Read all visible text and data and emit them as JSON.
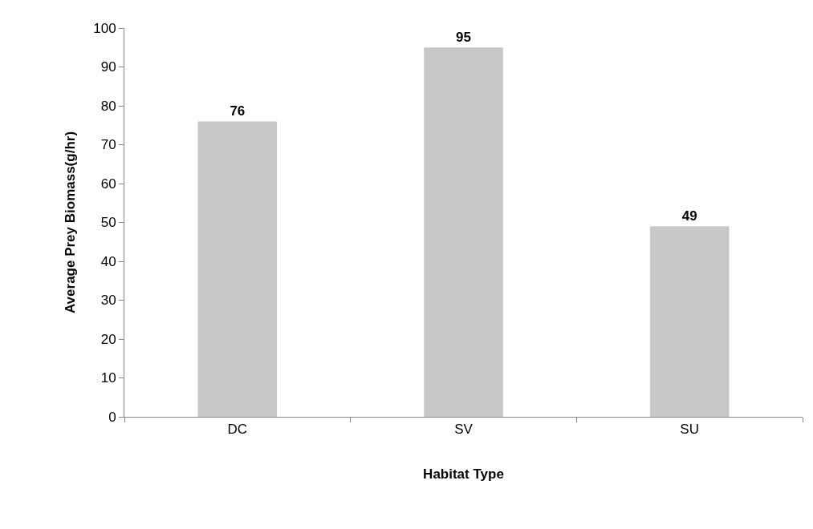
{
  "chart_data": {
    "type": "bar",
    "xlabel": "Habitat Type",
    "ylabel": "Average Prey Biomass(g/hr)",
    "categories": [
      "DC",
      "SV",
      "SU"
    ],
    "values": [
      76,
      95,
      49
    ],
    "color": "#c8c8c8",
    "ylim": [
      0,
      100
    ],
    "yticks": [
      0,
      10,
      20,
      30,
      40,
      50,
      60,
      70,
      80,
      90,
      100
    ],
    "grid": false,
    "legend": false,
    "data_labels": true
  }
}
